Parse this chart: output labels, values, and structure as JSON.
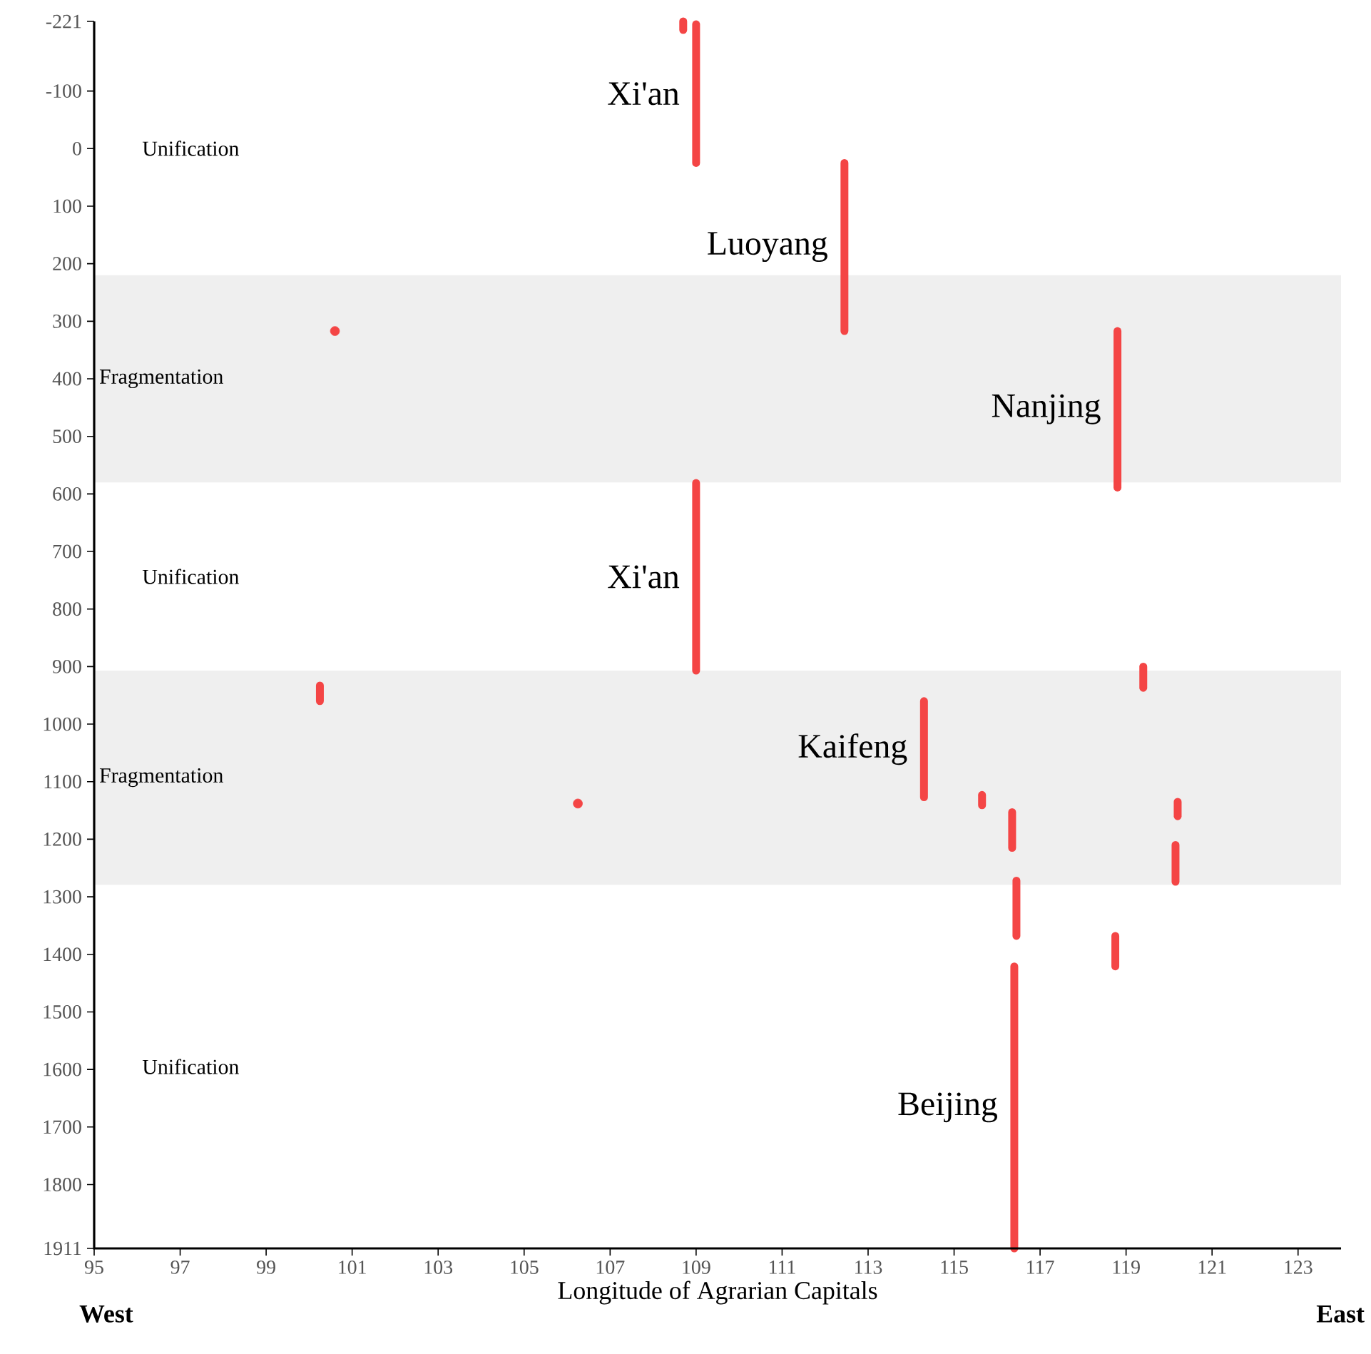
{
  "chart_data": {
    "type": "line",
    "xlabel": "Longitude of Agrarian Capitals",
    "xlim": [
      95,
      124
    ],
    "xticks": [
      95,
      97,
      99,
      101,
      103,
      105,
      107,
      109,
      111,
      113,
      115,
      117,
      119,
      121,
      123
    ],
    "ylim": [
      1911,
      -221
    ],
    "yticks": [
      -221,
      -100,
      0,
      100,
      200,
      300,
      400,
      500,
      600,
      700,
      800,
      900,
      1000,
      1100,
      1200,
      1300,
      1400,
      1500,
      1600,
      1700,
      1800,
      1911
    ],
    "grid": false,
    "line_style": "solid",
    "bands": [
      {
        "axis": "y",
        "from": 220,
        "to": 580,
        "label": "Fragmentation",
        "color": "#efefef"
      },
      {
        "axis": "y",
        "from": 907,
        "to": 1279,
        "label": "Fragmentation",
        "color": "#efefef"
      }
    ],
    "annotations": [
      "Unification",
      "Unification",
      "Unification",
      "West",
      "East"
    ],
    "series": [
      {
        "name": "Xi'an",
        "color": "#f44545",
        "x": [
          109,
          109
        ],
        "values": [
          -216,
          25
        ]
      },
      {
        "color": "#f44545",
        "x": [
          108.7,
          108.7
        ],
        "values": [
          -221,
          -206
        ]
      },
      {
        "name": "Luoyang",
        "color": "#f44545",
        "x": [
          112.45,
          112.45
        ],
        "values": [
          25,
          317
        ]
      },
      {
        "type": "scatter",
        "color": "#f44545",
        "x": [
          100.6
        ],
        "values": [
          317
        ]
      },
      {
        "name": "Nanjing",
        "color": "#f44545",
        "x": [
          118.8,
          118.8
        ],
        "values": [
          317,
          589
        ]
      },
      {
        "name": "Xi'an",
        "color": "#f44545",
        "x": [
          109,
          109
        ],
        "values": [
          581,
          907
        ]
      },
      {
        "color": "#f44545",
        "x": [
          100.25,
          100.25
        ],
        "values": [
          933,
          960
        ]
      },
      {
        "color": "#f44545",
        "x": [
          119.4,
          119.4
        ],
        "values": [
          900,
          937
        ]
      },
      {
        "name": "Kaifeng",
        "color": "#f44545",
        "x": [
          114.3,
          114.3
        ],
        "values": [
          960,
          1127
        ]
      },
      {
        "type": "scatter",
        "color": "#f44545",
        "x": [
          106.25
        ],
        "values": [
          1138
        ]
      },
      {
        "color": "#f44545",
        "x": [
          115.65,
          115.65
        ],
        "values": [
          1123,
          1141
        ]
      },
      {
        "color": "#f44545",
        "x": [
          120.2,
          120.2
        ],
        "values": [
          1135,
          1160
        ]
      },
      {
        "color": "#f44545",
        "x": [
          120.15,
          120.15
        ],
        "values": [
          1210,
          1274
        ]
      },
      {
        "color": "#f44545",
        "x": [
          116.35,
          116.35
        ],
        "values": [
          1153,
          1215
        ]
      },
      {
        "color": "#f44545",
        "x": [
          116.45,
          116.45
        ],
        "values": [
          1272,
          1368
        ]
      },
      {
        "color": "#f44545",
        "x": [
          118.75,
          118.75
        ],
        "values": [
          1368,
          1421
        ]
      },
      {
        "name": "Beijing",
        "color": "#f44545",
        "x": [
          116.4,
          116.4
        ],
        "values": [
          1421,
          1911
        ]
      }
    ]
  }
}
